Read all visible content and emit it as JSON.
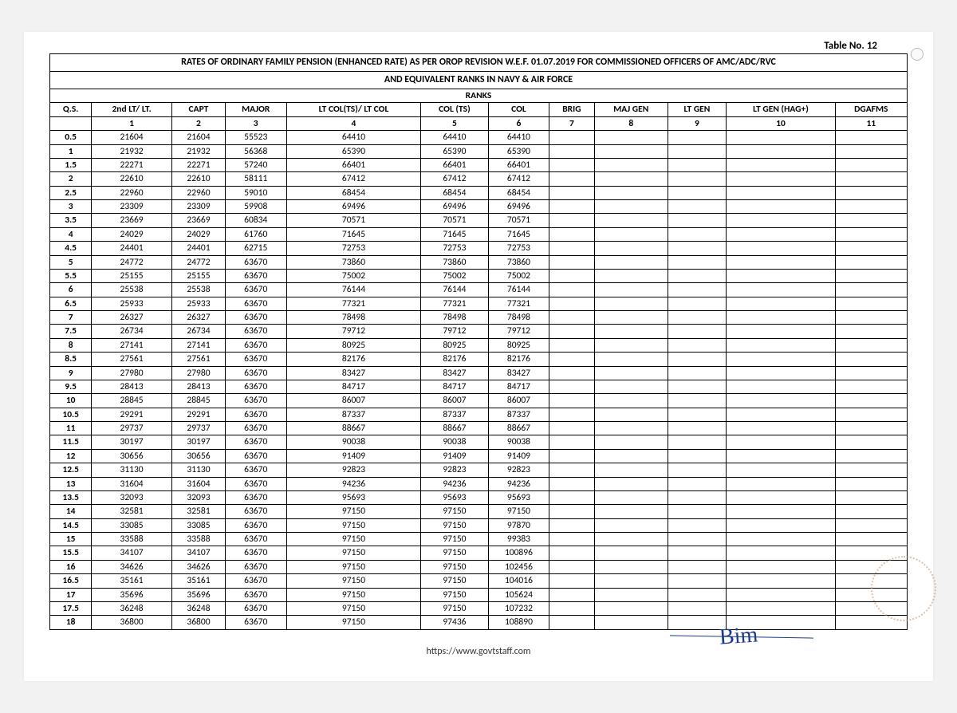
{
  "table_no": "Table No. 12",
  "title_line1": "RATES OF ORDINARY FAMILY PENSION (ENHANCED RATE) AS PER OROP REVISION W.E.F. 01.07.2019 FOR COMMISSIONED OFFICERS OF AMC/ADC/RVC",
  "title_line2": "AND EQUIVALENT RANKS IN NAVY & AIR FORCE",
  "ranks_label": "RANKS",
  "headers": {
    "qs": "Q.S.",
    "c1": "2nd LT/ LT.",
    "c2": "CAPT",
    "c3": "MAJOR",
    "c4": "LT COL(TS)/ LT COL",
    "c5": "COL (TS)",
    "c6": "COL",
    "c7": "BRIG",
    "c8": "MAJ GEN",
    "c9": "LT GEN",
    "c10": "LT GEN (HAG+)",
    "c11": "DGAFMS"
  },
  "col_numbers": [
    "1",
    "2",
    "3",
    "4",
    "5",
    "6",
    "7",
    "8",
    "9",
    "10",
    "11"
  ],
  "rows": [
    {
      "qs": "0.5",
      "v": [
        "21604",
        "21604",
        "55523",
        "64410",
        "64410",
        "64410",
        "",
        "",
        "",
        "",
        ""
      ]
    },
    {
      "qs": "1",
      "v": [
        "21932",
        "21932",
        "56368",
        "65390",
        "65390",
        "65390",
        "",
        "",
        "",
        "",
        ""
      ]
    },
    {
      "qs": "1.5",
      "v": [
        "22271",
        "22271",
        "57240",
        "66401",
        "66401",
        "66401",
        "",
        "",
        "",
        "",
        ""
      ]
    },
    {
      "qs": "2",
      "v": [
        "22610",
        "22610",
        "58111",
        "67412",
        "67412",
        "67412",
        "",
        "",
        "",
        "",
        ""
      ]
    },
    {
      "qs": "2.5",
      "v": [
        "22960",
        "22960",
        "59010",
        "68454",
        "68454",
        "68454",
        "",
        "",
        "",
        "",
        ""
      ]
    },
    {
      "qs": "3",
      "v": [
        "23309",
        "23309",
        "59908",
        "69496",
        "69496",
        "69496",
        "",
        "",
        "",
        "",
        ""
      ]
    },
    {
      "qs": "3.5",
      "v": [
        "23669",
        "23669",
        "60834",
        "70571",
        "70571",
        "70571",
        "",
        "",
        "",
        "",
        ""
      ]
    },
    {
      "qs": "4",
      "v": [
        "24029",
        "24029",
        "61760",
        "71645",
        "71645",
        "71645",
        "",
        "",
        "",
        "",
        ""
      ]
    },
    {
      "qs": "4.5",
      "v": [
        "24401",
        "24401",
        "62715",
        "72753",
        "72753",
        "72753",
        "",
        "",
        "",
        "",
        ""
      ]
    },
    {
      "qs": "5",
      "v": [
        "24772",
        "24772",
        "63670",
        "73860",
        "73860",
        "73860",
        "",
        "",
        "",
        "",
        ""
      ]
    },
    {
      "qs": "5.5",
      "v": [
        "25155",
        "25155",
        "63670",
        "75002",
        "75002",
        "75002",
        "",
        "",
        "",
        "",
        ""
      ]
    },
    {
      "qs": "6",
      "v": [
        "25538",
        "25538",
        "63670",
        "76144",
        "76144",
        "76144",
        "",
        "",
        "",
        "",
        ""
      ]
    },
    {
      "qs": "6.5",
      "v": [
        "25933",
        "25933",
        "63670",
        "77321",
        "77321",
        "77321",
        "",
        "",
        "",
        "",
        ""
      ]
    },
    {
      "qs": "7",
      "v": [
        "26327",
        "26327",
        "63670",
        "78498",
        "78498",
        "78498",
        "",
        "",
        "",
        "",
        ""
      ]
    },
    {
      "qs": "7.5",
      "v": [
        "26734",
        "26734",
        "63670",
        "79712",
        "79712",
        "79712",
        "",
        "",
        "",
        "",
        ""
      ]
    },
    {
      "qs": "8",
      "v": [
        "27141",
        "27141",
        "63670",
        "80925",
        "80925",
        "80925",
        "",
        "",
        "",
        "",
        ""
      ]
    },
    {
      "qs": "8.5",
      "v": [
        "27561",
        "27561",
        "63670",
        "82176",
        "82176",
        "82176",
        "",
        "",
        "",
        "",
        ""
      ]
    },
    {
      "qs": "9",
      "v": [
        "27980",
        "27980",
        "63670",
        "83427",
        "83427",
        "83427",
        "",
        "",
        "",
        "",
        ""
      ]
    },
    {
      "qs": "9.5",
      "v": [
        "28413",
        "28413",
        "63670",
        "84717",
        "84717",
        "84717",
        "",
        "",
        "",
        "",
        ""
      ]
    },
    {
      "qs": "10",
      "v": [
        "28845",
        "28845",
        "63670",
        "86007",
        "86007",
        "86007",
        "",
        "",
        "",
        "",
        ""
      ]
    },
    {
      "qs": "10.5",
      "v": [
        "29291",
        "29291",
        "63670",
        "87337",
        "87337",
        "87337",
        "",
        "",
        "",
        "",
        ""
      ]
    },
    {
      "qs": "11",
      "v": [
        "29737",
        "29737",
        "63670",
        "88667",
        "88667",
        "88667",
        "",
        "",
        "",
        "",
        ""
      ]
    },
    {
      "qs": "11.5",
      "v": [
        "30197",
        "30197",
        "63670",
        "90038",
        "90038",
        "90038",
        "",
        "",
        "",
        "",
        ""
      ]
    },
    {
      "qs": "12",
      "v": [
        "30656",
        "30656",
        "63670",
        "91409",
        "91409",
        "91409",
        "",
        "",
        "",
        "",
        ""
      ]
    },
    {
      "qs": "12.5",
      "v": [
        "31130",
        "31130",
        "63670",
        "92823",
        "92823",
        "92823",
        "",
        "",
        "",
        "",
        ""
      ]
    },
    {
      "qs": "13",
      "v": [
        "31604",
        "31604",
        "63670",
        "94236",
        "94236",
        "94236",
        "",
        "",
        "",
        "",
        ""
      ]
    },
    {
      "qs": "13.5",
      "v": [
        "32093",
        "32093",
        "63670",
        "95693",
        "95693",
        "95693",
        "",
        "",
        "",
        "",
        ""
      ]
    },
    {
      "qs": "14",
      "v": [
        "32581",
        "32581",
        "63670",
        "97150",
        "97150",
        "97150",
        "",
        "",
        "",
        "",
        ""
      ]
    },
    {
      "qs": "14.5",
      "v": [
        "33085",
        "33085",
        "63670",
        "97150",
        "97150",
        "97870",
        "",
        "",
        "",
        "",
        ""
      ]
    },
    {
      "qs": "15",
      "v": [
        "33588",
        "33588",
        "63670",
        "97150",
        "97150",
        "99383",
        "",
        "",
        "",
        "",
        ""
      ]
    },
    {
      "qs": "15.5",
      "v": [
        "34107",
        "34107",
        "63670",
        "97150",
        "97150",
        "100896",
        "",
        "",
        "",
        "",
        ""
      ]
    },
    {
      "qs": "16",
      "v": [
        "34626",
        "34626",
        "63670",
        "97150",
        "97150",
        "102456",
        "",
        "",
        "",
        "",
        ""
      ]
    },
    {
      "qs": "16.5",
      "v": [
        "35161",
        "35161",
        "63670",
        "97150",
        "97150",
        "104016",
        "",
        "",
        "",
        "",
        ""
      ]
    },
    {
      "qs": "17",
      "v": [
        "35696",
        "35696",
        "63670",
        "97150",
        "97150",
        "105624",
        "",
        "",
        "",
        "",
        ""
      ]
    },
    {
      "qs": "17.5",
      "v": [
        "36248",
        "36248",
        "63670",
        "97150",
        "97150",
        "107232",
        "",
        "",
        "",
        "",
        ""
      ]
    },
    {
      "qs": "18",
      "v": [
        "36800",
        "36800",
        "63670",
        "97150",
        "97436",
        "108890",
        "",
        "",
        "",
        "",
        ""
      ]
    }
  ],
  "footer_url": "https://www.govtstaff.com",
  "signature": "Bim"
}
